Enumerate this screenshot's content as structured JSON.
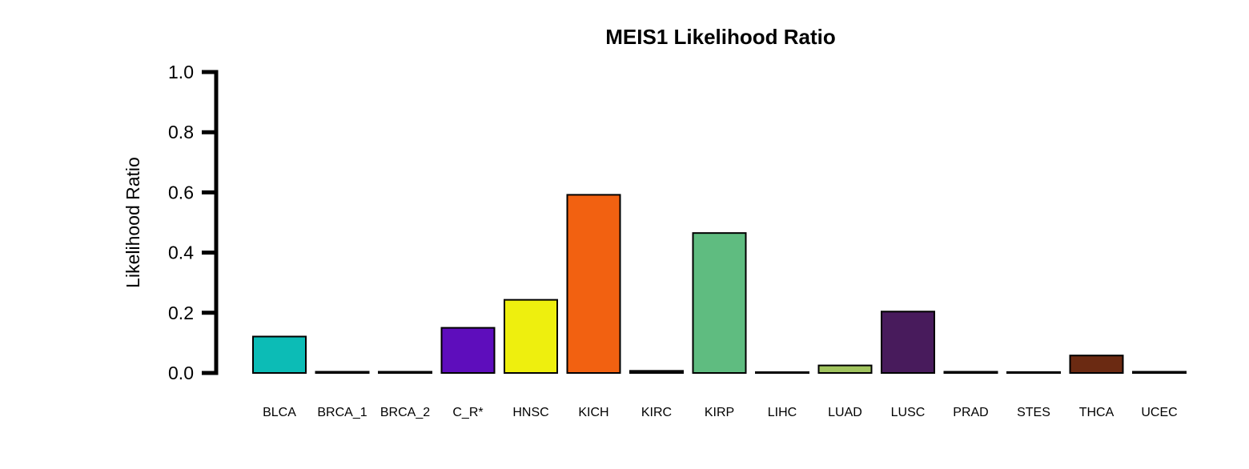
{
  "chart_data": {
    "type": "bar",
    "title": "MEIS1 Likelihood Ratio",
    "xlabel": "",
    "ylabel": "Likelihood Ratio",
    "ylim": [
      0,
      1.0
    ],
    "yticks": [
      "0.0",
      "0.2",
      "0.4",
      "0.6",
      "0.8",
      "1.0"
    ],
    "grid": false,
    "legend": "none",
    "categories": [
      "BLCA",
      "BRCA_1",
      "BRCA_2",
      "C_R*",
      "HNSC",
      "KICH",
      "KIRC",
      "KIRP",
      "LIHC",
      "LUAD",
      "LUSC",
      "PRAD",
      "STES",
      "THCA",
      "UCEC"
    ],
    "values": [
      0.121,
      0.004,
      0.004,
      0.15,
      0.243,
      0.592,
      0.007,
      0.465,
      0.001,
      0.025,
      0.204,
      0.004,
      0.003,
      0.058,
      0.004
    ],
    "colors": [
      "#0cbcb6",
      "#1a1a1a",
      "#1a1a1a",
      "#5e0dbc",
      "#eeef0e",
      "#f26111",
      "#1a1a1a",
      "#5fbc80",
      "#1a1a1a",
      "#a1c45f",
      "#481b5c",
      "#1a1a1a",
      "#1a1a1a",
      "#6b2a12",
      "#1a1a1a"
    ]
  }
}
